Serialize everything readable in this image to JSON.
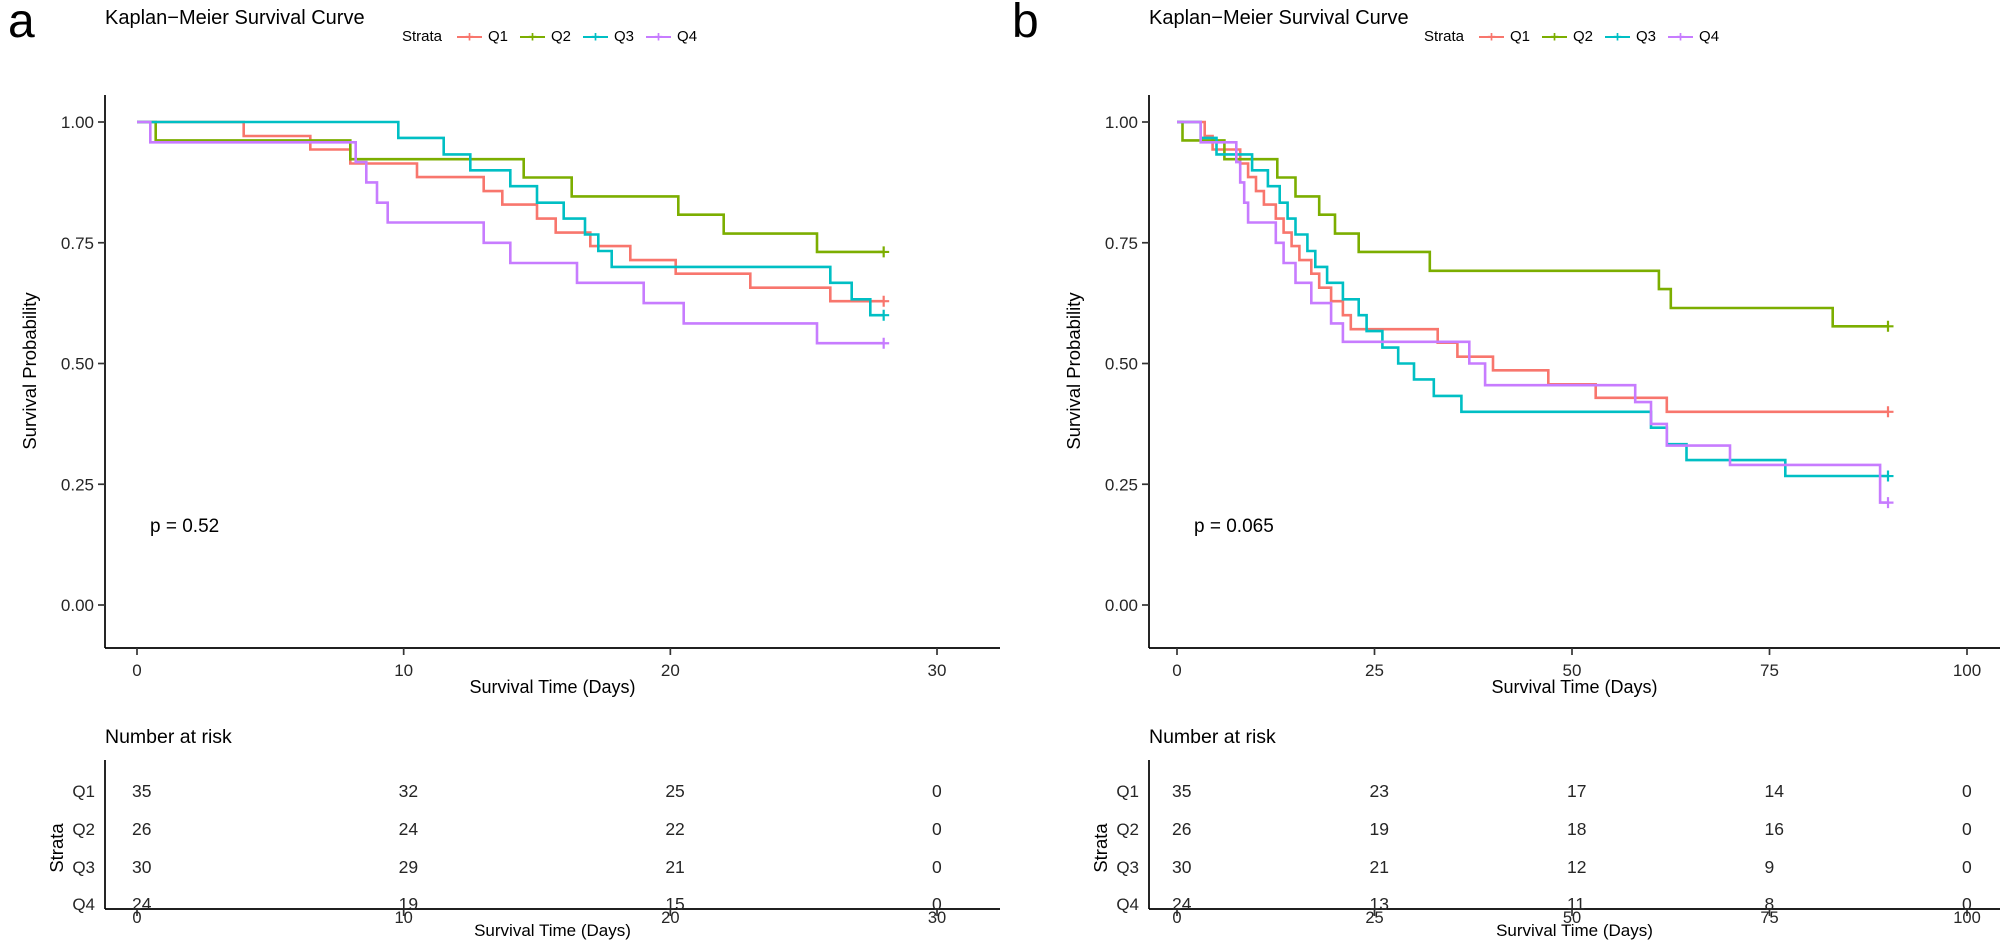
{
  "figure": {
    "background": "#ffffff"
  },
  "chart_data": [
    {
      "type": "line",
      "subtype": "kaplan-meier-step",
      "panel_label": "a",
      "title": "Kaplan−Meier Survival Curve",
      "ylabel": "Survival Probability",
      "xlabel": "Survival Time (Days)",
      "pvalue": "p = 0.52",
      "legend": {
        "title": "Strata",
        "position": "top"
      },
      "x_ticks": [
        0,
        10,
        20,
        30
      ],
      "y_tick_labels": [
        "1.00",
        "0.75",
        "0.50",
        "0.25",
        "0.00"
      ],
      "xlim": [
        0,
        30
      ],
      "ylim": [
        0,
        1
      ],
      "end_time": 28,
      "series": [
        {
          "name": "Q1",
          "color": "#F8766D",
          "end_censored": true,
          "steps": [
            [
              4,
              0.971
            ],
            [
              6.5,
              0.943
            ],
            [
              8,
              0.914
            ],
            [
              10.5,
              0.886
            ],
            [
              13,
              0.857
            ],
            [
              13.7,
              0.829
            ],
            [
              15,
              0.8
            ],
            [
              15.7,
              0.771
            ],
            [
              17,
              0.743
            ],
            [
              18.5,
              0.714
            ],
            [
              20.2,
              0.686
            ],
            [
              23,
              0.657
            ],
            [
              26,
              0.629
            ]
          ]
        },
        {
          "name": "Q2",
          "color": "#7CAE00",
          "end_censored": true,
          "steps": [
            [
              0.7,
              0.962
            ],
            [
              8,
              0.923
            ],
            [
              14.5,
              0.885
            ],
            [
              16.3,
              0.846
            ],
            [
              20.3,
              0.808
            ],
            [
              22,
              0.769
            ],
            [
              25.5,
              0.731
            ]
          ]
        },
        {
          "name": "Q3",
          "color": "#00BFC4",
          "end_censored": true,
          "steps": [
            [
              9.8,
              0.967
            ],
            [
              11.5,
              0.933
            ],
            [
              12.5,
              0.9
            ],
            [
              14,
              0.867
            ],
            [
              15,
              0.833
            ],
            [
              16,
              0.8
            ],
            [
              16.8,
              0.767
            ],
            [
              17.3,
              0.733
            ],
            [
              17.8,
              0.7
            ],
            [
              26,
              0.667
            ],
            [
              26.8,
              0.633
            ],
            [
              27.5,
              0.6
            ]
          ]
        },
        {
          "name": "Q4",
          "color": "#C77CFF",
          "end_censored": true,
          "steps": [
            [
              0.5,
              0.958
            ],
            [
              8.2,
              0.917
            ],
            [
              8.6,
              0.875
            ],
            [
              9,
              0.833
            ],
            [
              9.4,
              0.792
            ],
            [
              13,
              0.75
            ],
            [
              14,
              0.708
            ],
            [
              16.5,
              0.667
            ],
            [
              19,
              0.625
            ],
            [
              20.5,
              0.583
            ],
            [
              25.5,
              0.542
            ]
          ]
        }
      ],
      "risk_table": {
        "title": "Number at risk",
        "ylabel": "Strata",
        "time_points": [
          0,
          10,
          20,
          30
        ],
        "rows": [
          {
            "name": "Q1",
            "color": "#F8766D",
            "counts": [
              35,
              32,
              25,
              0
            ]
          },
          {
            "name": "Q2",
            "color": "#7CAE00",
            "counts": [
              26,
              24,
              22,
              0
            ]
          },
          {
            "name": "Q3",
            "color": "#00BFC4",
            "counts": [
              30,
              29,
              21,
              0
            ]
          },
          {
            "name": "Q4",
            "color": "#C77CFF",
            "counts": [
              24,
              19,
              15,
              0
            ]
          }
        ]
      }
    },
    {
      "type": "line",
      "subtype": "kaplan-meier-step",
      "panel_label": "b",
      "title": "Kaplan−Meier Survival Curve",
      "ylabel": "Survival Probability",
      "xlabel": "Survival Time (Days)",
      "pvalue": "p = 0.065",
      "legend": {
        "title": "Strata",
        "position": "top"
      },
      "x_ticks": [
        0,
        25,
        50,
        75,
        100
      ],
      "y_tick_labels": [
        "1.00",
        "0.75",
        "0.50",
        "0.25",
        "0.00"
      ],
      "xlim": [
        0,
        100
      ],
      "ylim": [
        0,
        1
      ],
      "end_time": 90,
      "series": [
        {
          "name": "Q1",
          "color": "#F8766D",
          "end_censored": true,
          "steps": [
            [
              3.5,
              0.971
            ],
            [
              4.5,
              0.943
            ],
            [
              8,
              0.914
            ],
            [
              9,
              0.886
            ],
            [
              10,
              0.857
            ],
            [
              11,
              0.829
            ],
            [
              12.5,
              0.8
            ],
            [
              13.5,
              0.771
            ],
            [
              14.5,
              0.743
            ],
            [
              15.5,
              0.714
            ],
            [
              17,
              0.686
            ],
            [
              18,
              0.657
            ],
            [
              19.5,
              0.629
            ],
            [
              21,
              0.6
            ],
            [
              22,
              0.571
            ],
            [
              33,
              0.543
            ],
            [
              35.5,
              0.514
            ],
            [
              40,
              0.486
            ],
            [
              47,
              0.457
            ],
            [
              53,
              0.429
            ],
            [
              62,
              0.4
            ]
          ]
        },
        {
          "name": "Q2",
          "color": "#7CAE00",
          "end_censored": true,
          "steps": [
            [
              0.7,
              0.962
            ],
            [
              6,
              0.923
            ],
            [
              12.7,
              0.885
            ],
            [
              15,
              0.846
            ],
            [
              18,
              0.808
            ],
            [
              20,
              0.769
            ],
            [
              23,
              0.731
            ],
            [
              32,
              0.692
            ],
            [
              61,
              0.654
            ],
            [
              62.5,
              0.615
            ],
            [
              83,
              0.577
            ]
          ]
        },
        {
          "name": "Q3",
          "color": "#00BFC4",
          "end_censored": true,
          "steps": [
            [
              3,
              0.967
            ],
            [
              5,
              0.933
            ],
            [
              9.5,
              0.9
            ],
            [
              11.5,
              0.867
            ],
            [
              13,
              0.833
            ],
            [
              14,
              0.8
            ],
            [
              15,
              0.767
            ],
            [
              16.5,
              0.733
            ],
            [
              17.5,
              0.7
            ],
            [
              19,
              0.667
            ],
            [
              21,
              0.633
            ],
            [
              23,
              0.6
            ],
            [
              24,
              0.567
            ],
            [
              26,
              0.533
            ],
            [
              28,
              0.5
            ],
            [
              30,
              0.467
            ],
            [
              32.5,
              0.433
            ],
            [
              36,
              0.4
            ],
            [
              60,
              0.367
            ],
            [
              62,
              0.333
            ],
            [
              64.5,
              0.3
            ],
            [
              77,
              0.267
            ]
          ]
        },
        {
          "name": "Q4",
          "color": "#C77CFF",
          "end_censored": true,
          "steps": [
            [
              3,
              0.958
            ],
            [
              7.5,
              0.917
            ],
            [
              8,
              0.875
            ],
            [
              8.5,
              0.833
            ],
            [
              9,
              0.792
            ],
            [
              12.5,
              0.75
            ],
            [
              13.5,
              0.708
            ],
            [
              15,
              0.667
            ],
            [
              17,
              0.625
            ],
            [
              19.5,
              0.583
            ],
            [
              21,
              0.545
            ],
            [
              37,
              0.5
            ],
            [
              39,
              0.455
            ],
            [
              58,
              0.42
            ],
            [
              60,
              0.375
            ],
            [
              62,
              0.33
            ],
            [
              70,
              0.29
            ],
            [
              89,
              0.212
            ]
          ]
        }
      ],
      "risk_table": {
        "title": "Number at risk",
        "ylabel": "Strata",
        "time_points": [
          0,
          25,
          50,
          75,
          100
        ],
        "rows": [
          {
            "name": "Q1",
            "color": "#F8766D",
            "counts": [
              35,
              23,
              17,
              14,
              0
            ]
          },
          {
            "name": "Q2",
            "color": "#7CAE00",
            "counts": [
              26,
              19,
              18,
              16,
              0
            ]
          },
          {
            "name": "Q3",
            "color": "#00BFC4",
            "counts": [
              30,
              21,
              12,
              9,
              0
            ]
          },
          {
            "name": "Q4",
            "color": "#C77CFF",
            "counts": [
              24,
              13,
              11,
              8,
              0
            ]
          }
        ]
      }
    }
  ]
}
